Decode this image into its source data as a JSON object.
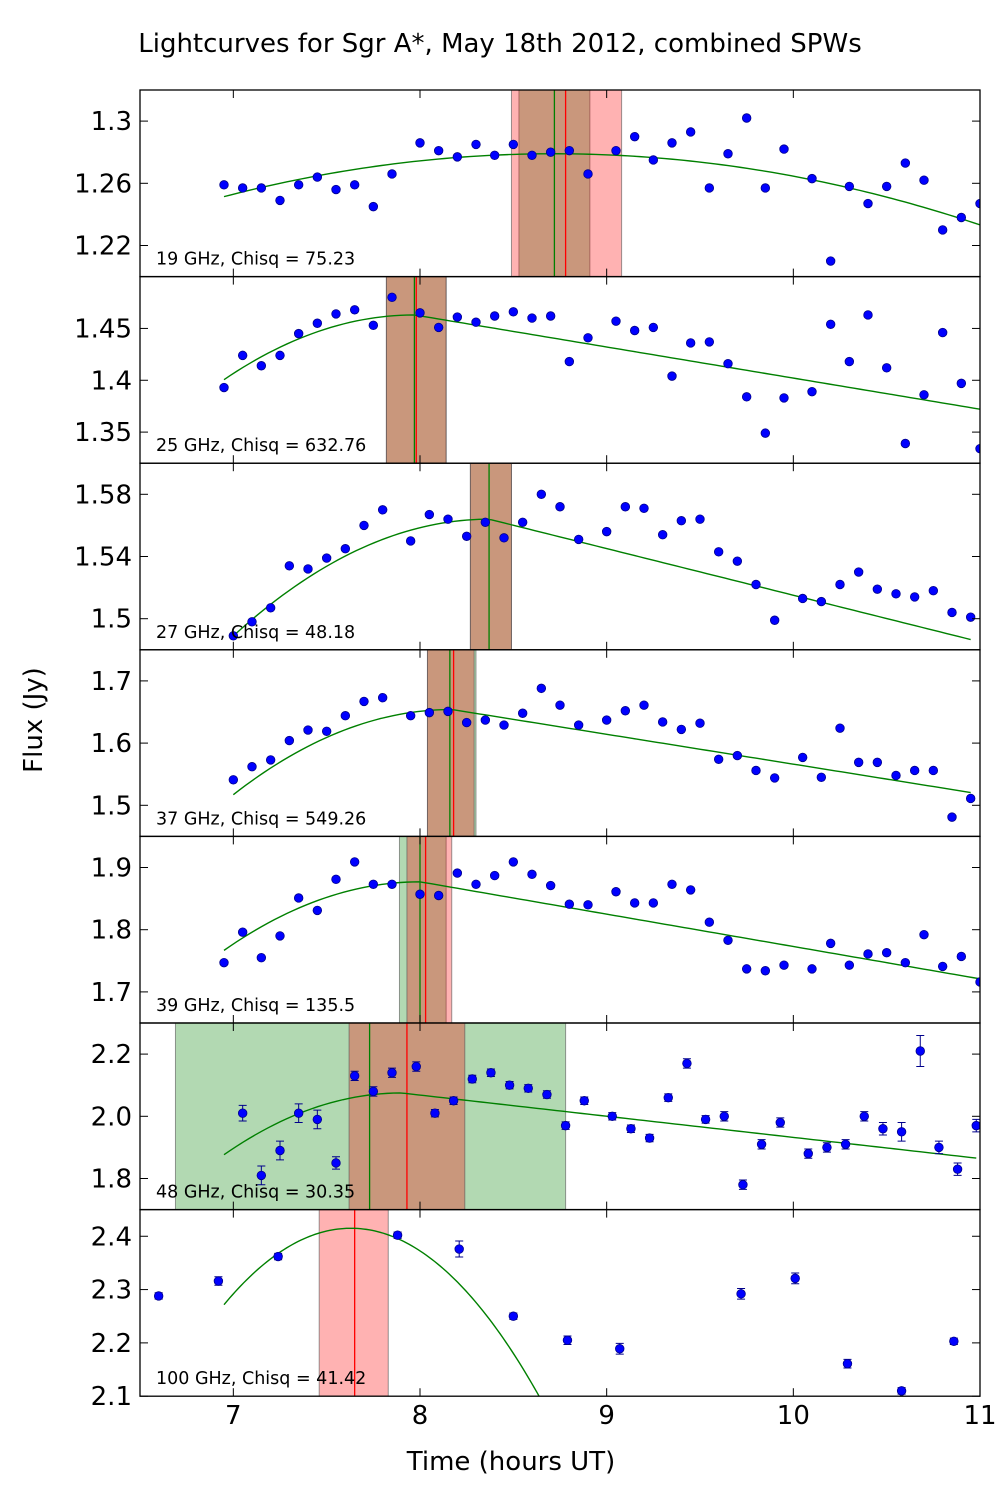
{
  "figure": {
    "title": "Lightcurves for Sgr A*, May 18th 2012, combined SPWs",
    "xlabel": "Time (hours UT)",
    "ylabel": "Flux (Jy)",
    "xlim": [
      6.5,
      11
    ],
    "xticks": [
      7,
      8,
      9,
      10,
      11
    ]
  },
  "colors": {
    "points": "#0000ff",
    "point_edge": "#00008b",
    "fit": "#008000",
    "peak_line_green": "#008000",
    "peak_line_red": "#ff0000",
    "band_red": "#ff0000",
    "band_green": "#008000",
    "band_overlap": "#a89a70"
  },
  "chart_data": [
    {
      "type": "scatter",
      "label": "19 GHz, Chisq = 75.23",
      "ylim": [
        1.2,
        1.32
      ],
      "yticks": [
        1.22,
        1.26,
        1.3
      ],
      "yticklabels": [
        "1.22",
        "1.26",
        "1.3"
      ],
      "x": [
        6.95,
        7.05,
        7.15,
        7.25,
        7.35,
        7.45,
        7.55,
        7.65,
        7.75,
        7.85,
        8.0,
        8.1,
        8.2,
        8.3,
        8.4,
        8.5,
        8.6,
        8.7,
        8.8,
        8.9,
        9.05,
        9.15,
        9.25,
        9.35,
        9.45,
        9.55,
        9.65,
        9.75,
        9.85,
        9.95,
        10.1,
        10.2,
        10.3,
        10.4,
        10.5,
        10.6,
        10.7,
        10.8,
        10.9,
        11.0
      ],
      "y": [
        1.259,
        1.257,
        1.257,
        1.249,
        1.259,
        1.264,
        1.256,
        1.259,
        1.245,
        1.266,
        1.286,
        1.281,
        1.277,
        1.285,
        1.278,
        1.285,
        1.278,
        1.28,
        1.281,
        1.266,
        1.281,
        1.29,
        1.275,
        1.286,
        1.293,
        1.257,
        1.279,
        1.302,
        1.257,
        1.282,
        1.263,
        1.21,
        1.258,
        1.247,
        1.258,
        1.273,
        1.262,
        1.23,
        1.238,
        1.247
      ],
      "fit": {
        "type": "quadratic",
        "x0": 8.72,
        "peak": 1.279,
        "k": 0.0088,
        "xrange": [
          6.95,
          11.0
        ]
      },
      "vlines": [
        {
          "x": 8.72,
          "color": "green"
        },
        {
          "x": 8.78,
          "color": "red"
        }
      ],
      "bands": [
        {
          "x0": 8.53,
          "x1": 8.91,
          "color": "green"
        },
        {
          "x0": 8.49,
          "x1": 9.08,
          "color": "red"
        }
      ]
    },
    {
      "type": "scatter",
      "label": "25 GHz, Chisq = 632.76",
      "ylim": [
        1.32,
        1.5
      ],
      "yticks": [
        1.35,
        1.4,
        1.45
      ],
      "yticklabels": [
        "1.35",
        "1.4",
        "1.45"
      ],
      "x": [
        6.95,
        7.05,
        7.15,
        7.25,
        7.35,
        7.45,
        7.55,
        7.65,
        7.75,
        7.85,
        8.0,
        8.1,
        8.2,
        8.3,
        8.4,
        8.5,
        8.6,
        8.7,
        8.8,
        8.9,
        9.05,
        9.15,
        9.25,
        9.35,
        9.45,
        9.55,
        9.65,
        9.75,
        9.85,
        9.95,
        10.1,
        10.2,
        10.3,
        10.4,
        10.5,
        10.6,
        10.7,
        10.8,
        10.9,
        11.0
      ],
      "y": [
        1.393,
        1.424,
        1.414,
        1.424,
        1.445,
        1.455,
        1.464,
        1.468,
        1.453,
        1.48,
        1.465,
        1.451,
        1.461,
        1.456,
        1.462,
        1.466,
        1.46,
        1.462,
        1.418,
        1.441,
        1.457,
        1.448,
        1.451,
        1.404,
        1.436,
        1.437,
        1.416,
        1.384,
        1.349,
        1.383,
        1.389,
        1.454,
        1.418,
        1.463,
        1.412,
        1.339,
        1.386,
        1.446,
        1.397,
        1.334
      ],
      "fit": {
        "type": "peaked",
        "x0": 7.97,
        "peak": 1.463,
        "rise_k": 0.06,
        "fall_rate": 0.03,
        "xrange": [
          6.95,
          11.0
        ]
      },
      "vlines": [
        {
          "x": 7.97,
          "color": "green"
        },
        {
          "x": 7.98,
          "color": "red"
        }
      ],
      "bands": [
        {
          "x0": 7.82,
          "x1": 8.14,
          "color": "green"
        },
        {
          "x0": 7.82,
          "x1": 8.14,
          "color": "red"
        }
      ]
    },
    {
      "type": "scatter",
      "label": "27 GHz, Chisq = 48.18",
      "ylim": [
        1.48,
        1.6
      ],
      "yticks": [
        1.5,
        1.54,
        1.58
      ],
      "yticklabels": [
        "1.5",
        "1.54",
        "1.58"
      ],
      "x": [
        7.0,
        7.1,
        7.2,
        7.3,
        7.4,
        7.5,
        7.6,
        7.7,
        7.8,
        7.95,
        8.05,
        8.15,
        8.25,
        8.35,
        8.45,
        8.55,
        8.65,
        8.75,
        8.85,
        9.0,
        9.1,
        9.2,
        9.3,
        9.4,
        9.5,
        9.6,
        9.7,
        9.8,
        9.9,
        10.05,
        10.15,
        10.25,
        10.35,
        10.45,
        10.55,
        10.65,
        10.75,
        10.85,
        10.95
      ],
      "y": [
        1.489,
        1.498,
        1.507,
        1.534,
        1.532,
        1.539,
        1.545,
        1.56,
        1.57,
        1.55,
        1.567,
        1.564,
        1.553,
        1.562,
        1.552,
        1.562,
        1.58,
        1.572,
        1.551,
        1.556,
        1.572,
        1.571,
        1.554,
        1.563,
        1.564,
        1.543,
        1.537,
        1.522,
        1.499,
        1.513,
        1.511,
        1.522,
        1.53,
        1.519,
        1.516,
        1.514,
        1.518,
        1.504,
        1.501
      ],
      "fit": {
        "type": "peaked",
        "x0": 8.37,
        "peak": 1.564,
        "rise_k": 0.04,
        "fall_rate": 0.03,
        "xrange": [
          7.0,
          10.95
        ]
      },
      "vlines": [
        {
          "x": 8.37,
          "color": "green"
        }
      ],
      "bands": [
        {
          "x0": 8.27,
          "x1": 8.49,
          "color": "green"
        },
        {
          "x0": 8.27,
          "x1": 8.49,
          "color": "red"
        }
      ]
    },
    {
      "type": "scatter",
      "label": "37 GHz, Chisq = 549.26",
      "ylim": [
        1.45,
        1.75
      ],
      "yticks": [
        1.5,
        1.6,
        1.7
      ],
      "yticklabels": [
        "1.5",
        "1.6",
        "1.7"
      ],
      "x": [
        7.0,
        7.1,
        7.2,
        7.3,
        7.4,
        7.5,
        7.6,
        7.7,
        7.8,
        7.95,
        8.05,
        8.15,
        8.25,
        8.35,
        8.45,
        8.55,
        8.65,
        8.75,
        8.85,
        9.0,
        9.1,
        9.2,
        9.3,
        9.4,
        9.5,
        9.6,
        9.7,
        9.8,
        9.9,
        10.05,
        10.15,
        10.25,
        10.35,
        10.45,
        10.55,
        10.65,
        10.75,
        10.85,
        10.95
      ],
      "y": [
        1.541,
        1.562,
        1.573,
        1.604,
        1.621,
        1.619,
        1.644,
        1.667,
        1.673,
        1.644,
        1.649,
        1.651,
        1.633,
        1.637,
        1.629,
        1.648,
        1.688,
        1.661,
        1.629,
        1.637,
        1.652,
        1.661,
        1.634,
        1.622,
        1.632,
        1.574,
        1.58,
        1.556,
        1.544,
        1.577,
        1.545,
        1.624,
        1.569,
        1.569,
        1.548,
        1.556,
        1.556,
        1.481,
        1.511
      ],
      "fit": {
        "type": "peaked",
        "x0": 8.17,
        "peak": 1.654,
        "rise_k": 0.1,
        "fall_rate": 0.048,
        "xrange": [
          7.0,
          10.95
        ]
      },
      "vlines": [
        {
          "x": 8.16,
          "color": "green"
        },
        {
          "x": 8.18,
          "color": "red"
        }
      ],
      "bands": [
        {
          "x0": 8.04,
          "x1": 8.3,
          "color": "green"
        },
        {
          "x0": 8.04,
          "x1": 8.29,
          "color": "red"
        }
      ]
    },
    {
      "type": "scatter",
      "label": "39 GHz, Chisq = 135.5",
      "ylim": [
        1.65,
        1.95
      ],
      "yticks": [
        1.7,
        1.8,
        1.9
      ],
      "yticklabels": [
        "1.7",
        "1.8",
        "1.9"
      ],
      "x": [
        6.95,
        7.05,
        7.15,
        7.25,
        7.35,
        7.45,
        7.55,
        7.65,
        7.75,
        7.85,
        8.0,
        8.1,
        8.2,
        8.3,
        8.4,
        8.5,
        8.6,
        8.7,
        8.8,
        8.9,
        9.05,
        9.15,
        9.25,
        9.35,
        9.45,
        9.55,
        9.65,
        9.75,
        9.85,
        9.95,
        10.1,
        10.2,
        10.3,
        10.4,
        10.5,
        10.6,
        10.7,
        10.8,
        10.9,
        11.0
      ],
      "y": [
        1.747,
        1.796,
        1.755,
        1.79,
        1.851,
        1.831,
        1.881,
        1.909,
        1.873,
        1.873,
        1.857,
        1.855,
        1.891,
        1.873,
        1.887,
        1.909,
        1.889,
        1.871,
        1.841,
        1.84,
        1.861,
        1.843,
        1.843,
        1.873,
        1.864,
        1.812,
        1.783,
        1.737,
        1.734,
        1.743,
        1.737,
        1.778,
        1.743,
        1.761,
        1.763,
        1.747,
        1.792,
        1.741,
        1.757,
        1.716
      ],
      "fit": {
        "type": "peaked",
        "x0": 8.0,
        "peak": 1.877,
        "rise_k": 0.1,
        "fall_rate": 0.052,
        "xrange": [
          6.95,
          11.0
        ]
      },
      "vlines": [
        {
          "x": 8.0,
          "color": "green"
        },
        {
          "x": 8.03,
          "color": "red"
        }
      ],
      "bands": [
        {
          "x0": 7.89,
          "x1": 8.14,
          "color": "green"
        },
        {
          "x0": 7.93,
          "x1": 8.17,
          "color": "red"
        }
      ]
    },
    {
      "type": "scatter",
      "label": "48 GHz, Chisq = 30.35",
      "ylim": [
        1.7,
        2.3
      ],
      "yticks": [
        1.8,
        2.0,
        2.2
      ],
      "yticklabels": [
        "1.8",
        "2.0",
        "2.2"
      ],
      "x": [
        7.05,
        7.15,
        7.25,
        7.35,
        7.45,
        7.55,
        7.65,
        7.75,
        7.85,
        7.98,
        8.08,
        8.18,
        8.28,
        8.38,
        8.48,
        8.58,
        8.68,
        8.78,
        8.88,
        9.03,
        9.13,
        9.23,
        9.33,
        9.43,
        9.53,
        9.63,
        9.73,
        9.83,
        9.93,
        10.08,
        10.18,
        10.28,
        10.38,
        10.48,
        10.58,
        10.68,
        10.78,
        10.88,
        10.98
      ],
      "y": [
        2.01,
        1.81,
        1.89,
        2.01,
        1.99,
        1.85,
        2.13,
        2.08,
        2.14,
        2.16,
        2.01,
        2.05,
        2.12,
        2.14,
        2.1,
        2.09,
        2.07,
        1.97,
        2.05,
        2.0,
        1.96,
        1.93,
        2.06,
        2.17,
        1.99,
        2.0,
        1.78,
        1.91,
        1.98,
        1.88,
        1.9,
        1.91,
        2.0,
        1.96,
        1.95,
        2.21,
        1.9,
        1.83,
        1.97
      ],
      "yerr": [
        0.025,
        0.03,
        0.03,
        0.03,
        0.03,
        0.02,
        0.015,
        0.015,
        0.015,
        0.015,
        0.012,
        0.012,
        0.012,
        0.012,
        0.012,
        0.012,
        0.012,
        0.012,
        0.012,
        0.012,
        0.012,
        0.012,
        0.012,
        0.015,
        0.012,
        0.015,
        0.015,
        0.015,
        0.015,
        0.015,
        0.015,
        0.015,
        0.015,
        0.02,
        0.03,
        0.05,
        0.02,
        0.02,
        0.02
      ],
      "fit": {
        "type": "peaked",
        "x0": 7.9,
        "peak": 2.075,
        "rise_k": 0.22,
        "fall_rate": 0.068,
        "xrange": [
          6.95,
          10.98
        ]
      },
      "vlines": [
        {
          "x": 7.73,
          "color": "green"
        },
        {
          "x": 7.93,
          "color": "red"
        }
      ],
      "bands": [
        {
          "x0": 6.69,
          "x1": 8.78,
          "color": "green"
        },
        {
          "x0": 7.62,
          "x1": 8.24,
          "color": "red"
        }
      ]
    },
    {
      "type": "scatter",
      "label": "100 GHz, Chisq = 41.42",
      "ylim": [
        2.1,
        2.45
      ],
      "yticks": [
        2.1,
        2.2,
        2.3,
        2.4
      ],
      "yticklabels": [
        "2.1",
        "2.2",
        "2.3",
        "2.4"
      ],
      "x": [
        6.6,
        6.92,
        7.24,
        7.88,
        8.21,
        8.5,
        8.79,
        9.07,
        9.72,
        10.01,
        10.29,
        10.58,
        10.86
      ],
      "y": [
        2.288,
        2.316,
        2.362,
        2.402,
        2.376,
        2.25,
        2.205,
        2.189,
        2.292,
        2.321,
        2.161,
        2.11,
        2.203
      ],
      "yerr": [
        0.006,
        0.008,
        0.006,
        0.006,
        0.015,
        0.006,
        0.008,
        0.01,
        0.01,
        0.01,
        0.008,
        0.006,
        0.006
      ],
      "fit": {
        "type": "quadratic",
        "x0": 7.63,
        "peak": 2.415,
        "k": 0.31,
        "xrange": [
          6.95,
          8.78
        ]
      },
      "vlines": [
        {
          "x": 7.65,
          "color": "red"
        }
      ],
      "bands": [
        {
          "x0": 7.46,
          "x1": 7.83,
          "color": "red"
        }
      ]
    }
  ]
}
